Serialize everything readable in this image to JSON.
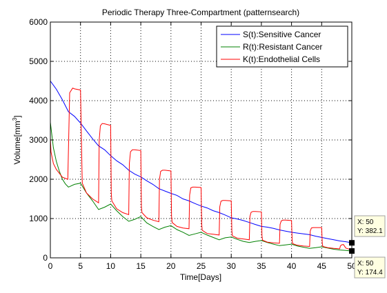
{
  "window": {
    "background": "#ffffff"
  },
  "chart_data": {
    "type": "line",
    "title": "Periodic Therapy Three-Compartment (patternsearch)",
    "xlabel": "Time[Days]",
    "ylabel": "Volume[mm³]",
    "ylabel_main": "Volume[mm",
    "ylabel_sup": "3",
    "ylabel_close": "]",
    "xlim": [
      0,
      50
    ],
    "ylim": [
      0,
      6000
    ],
    "xticks": [
      0,
      5,
      10,
      15,
      20,
      25,
      30,
      35,
      40,
      45,
      50
    ],
    "yticks": [
      0,
      1000,
      2000,
      3000,
      4000,
      5000,
      6000
    ],
    "xtick_labels": [
      "0",
      "5",
      "10",
      "15",
      "20",
      "25",
      "30",
      "35",
      "40",
      "45",
      "50"
    ],
    "ytick_labels": [
      "0",
      "1000",
      "2000",
      "3000",
      "4000",
      "5000",
      "6000"
    ],
    "grid": true,
    "legend_position": "top-right",
    "series": [
      {
        "name": "S(t):Sensitive Cancer",
        "color": "#0000ff",
        "x": [
          0,
          1,
          2,
          3,
          4,
          5,
          6,
          7,
          8,
          9,
          10,
          11,
          12,
          13,
          14,
          15,
          16,
          17,
          18,
          19,
          20,
          21,
          22,
          23,
          24,
          25,
          26,
          27,
          28,
          29,
          30,
          31,
          32,
          33,
          34,
          35,
          36,
          37,
          38,
          39,
          40,
          41,
          42,
          43,
          44,
          45,
          46,
          47,
          48,
          49,
          50
        ],
        "y": [
          4500,
          4290,
          4020,
          3720,
          3600,
          3430,
          3230,
          3030,
          2850,
          2750,
          2600,
          2470,
          2370,
          2230,
          2130,
          2060,
          1960,
          1870,
          1760,
          1700,
          1640,
          1590,
          1500,
          1450,
          1380,
          1320,
          1270,
          1200,
          1150,
          1090,
          1020,
          990,
          950,
          900,
          850,
          800,
          780,
          750,
          710,
          680,
          650,
          630,
          610,
          590,
          550,
          520,
          490,
          460,
          430,
          410,
          382.1
        ]
      },
      {
        "name": "R(t):Resistant Cancer",
        "color": "#008000",
        "x": [
          0,
          0.5,
          1,
          1.5,
          2,
          2.5,
          3,
          4,
          5,
          6,
          7,
          8,
          9,
          10,
          11,
          12,
          13,
          14,
          15,
          16,
          17,
          18,
          19,
          20,
          21,
          22,
          23,
          24,
          25,
          26,
          27,
          28,
          29,
          30,
          31,
          32,
          33,
          34,
          35,
          36,
          37,
          38,
          39,
          40,
          41,
          42,
          43,
          44,
          45,
          46,
          47,
          48,
          49,
          50
        ],
        "y": [
          3450,
          2800,
          2450,
          2200,
          2000,
          1880,
          1800,
          1870,
          1900,
          1650,
          1450,
          1230,
          1290,
          1370,
          1200,
          1050,
          930,
          980,
          1050,
          890,
          800,
          720,
          780,
          820,
          720,
          650,
          570,
          610,
          650,
          580,
          520,
          460,
          510,
          530,
          470,
          420,
          390,
          420,
          440,
          390,
          350,
          310,
          330,
          350,
          300,
          270,
          240,
          260,
          280,
          250,
          220,
          200,
          190,
          174.4
        ]
      },
      {
        "name": "K(t):Endothelial Cells",
        "color": "#ff0000",
        "x": [
          0,
          0.1,
          0.5,
          1,
          2,
          2.9,
          3.2,
          3.7,
          4,
          5,
          5.25,
          5.3,
          6,
          7,
          8,
          8.1,
          8.3,
          8.6,
          9,
          10,
          10.1,
          10.2,
          11,
          12,
          13,
          13.1,
          13.3,
          13.6,
          14,
          15,
          15.1,
          15.2,
          16,
          17,
          18,
          18.1,
          18.3,
          18.6,
          19,
          20,
          20.1,
          20.2,
          21,
          22,
          23,
          23.1,
          23.3,
          23.6,
          24,
          25,
          25.1,
          25.2,
          26,
          27,
          28,
          28.1,
          28.3,
          28.6,
          29,
          30,
          30.1,
          30.2,
          31,
          32,
          33,
          33.1,
          33.3,
          33.6,
          34,
          35,
          35.1,
          35.2,
          36,
          37,
          38,
          38.1,
          38.3,
          38.6,
          39,
          40,
          40.1,
          40.2,
          41,
          42,
          43,
          43.1,
          43.3,
          43.6,
          44,
          45,
          45.1,
          45.2,
          46,
          47,
          48,
          48.1,
          48.3,
          48.6,
          49,
          50
        ],
        "y": [
          3050,
          2700,
          2400,
          2250,
          2050,
          2000,
          4200,
          4320,
          4300,
          4270,
          2200,
          1900,
          1650,
          1500,
          1400,
          3000,
          3360,
          3420,
          3410,
          3370,
          1650,
          1450,
          1250,
          1150,
          1100,
          2400,
          2700,
          2750,
          2750,
          2730,
          1300,
          1150,
          1020,
          960,
          920,
          2000,
          2200,
          2230,
          2230,
          2210,
          1050,
          900,
          800,
          760,
          740,
          1600,
          1780,
          1800,
          1800,
          1790,
          850,
          700,
          620,
          600,
          580,
          1300,
          1440,
          1460,
          1460,
          1450,
          680,
          560,
          500,
          480,
          460,
          1050,
          1160,
          1180,
          1180,
          1170,
          550,
          450,
          400,
          380,
          370,
          850,
          940,
          960,
          960,
          950,
          440,
          360,
          320,
          300,
          290,
          680,
          760,
          770,
          770,
          770,
          360,
          290,
          260,
          240,
          230,
          300,
          330,
          340,
          250,
          200
        ]
      }
    ],
    "datatips": [
      {
        "x_label": "X: 50",
        "y_label": "Y: 382.1",
        "x": 50,
        "y": 382.1
      },
      {
        "x_label": "X: 50",
        "y_label": "Y: 174.4",
        "x": 50,
        "y": 174.4
      }
    ]
  }
}
